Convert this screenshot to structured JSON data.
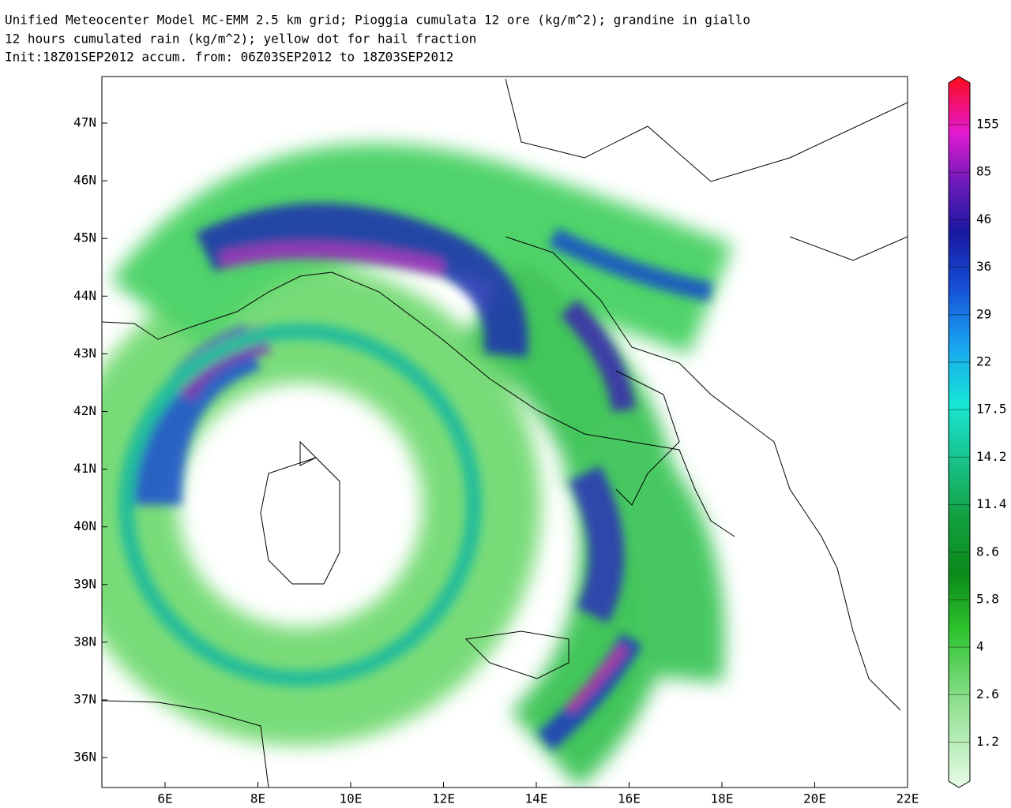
{
  "header": {
    "lines": [
      "Unified Meteocenter Model MC-EMM 2.5 km grid; Pioggia cumulata 12 ore (kg/m^2); grandine in giallo",
      "12 hours cumulated rain (kg/m^2); yellow dot for hail fraction",
      "Init:18Z01SEP2012 accum. from: 06Z03SEP2012 to 18Z03SEP2012"
    ]
  },
  "map": {
    "lat_labels": [
      "47N",
      "46N",
      "45N",
      "44N",
      "43N",
      "42N",
      "41N",
      "40N",
      "39N",
      "38N",
      "37N",
      "36N"
    ],
    "lon_labels": [
      "6E",
      "8E",
      "10E",
      "12E",
      "14E",
      "16E",
      "18E",
      "20E",
      "22E"
    ]
  },
  "colorbar": {
    "labels": [
      "155",
      "85",
      "46",
      "36",
      "29",
      "22",
      "17.5",
      "14.2",
      "11.4",
      "8.6",
      "5.8",
      "4",
      "2.6",
      "1.2"
    ]
  }
}
